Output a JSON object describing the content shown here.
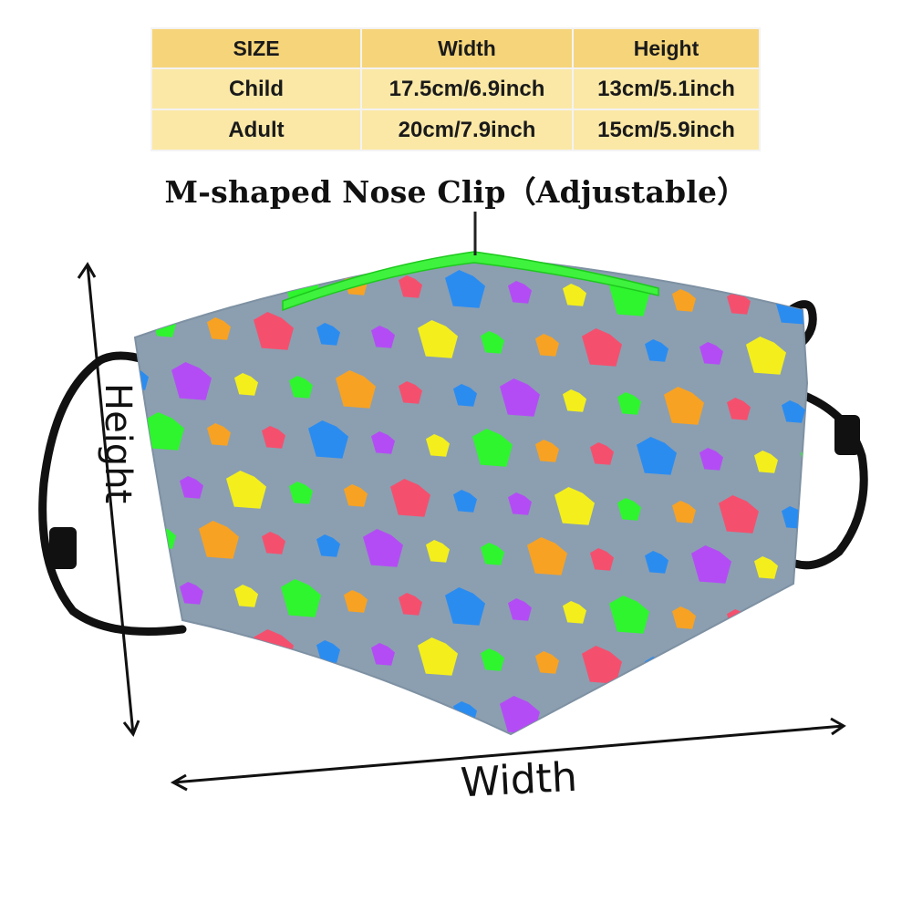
{
  "size_table": {
    "headers": [
      "SIZE",
      "Width",
      "Height"
    ],
    "rows": [
      {
        "size": "Child",
        "width": "17.5cm/6.9inch",
        "height": "13cm/5.1inch"
      },
      {
        "size": "Adult",
        "width": "20cm/7.9inch",
        "height": "15cm/5.9inch"
      }
    ]
  },
  "nose_clip_label": "M-shaped Nose Clip（Adjustable）",
  "dimension_labels": {
    "height": "Height",
    "width": "Width"
  },
  "colors": {
    "table_header": "#f6d57a",
    "table_cell": "#fbe8a6",
    "mask_fabric": "#8b9fb1",
    "nose_clip": "#3ef23e",
    "pattern": [
      "#2b8cf0",
      "#b44cf5",
      "#f4ef1c",
      "#2ef52e",
      "#f8a223",
      "#f4506e"
    ]
  }
}
